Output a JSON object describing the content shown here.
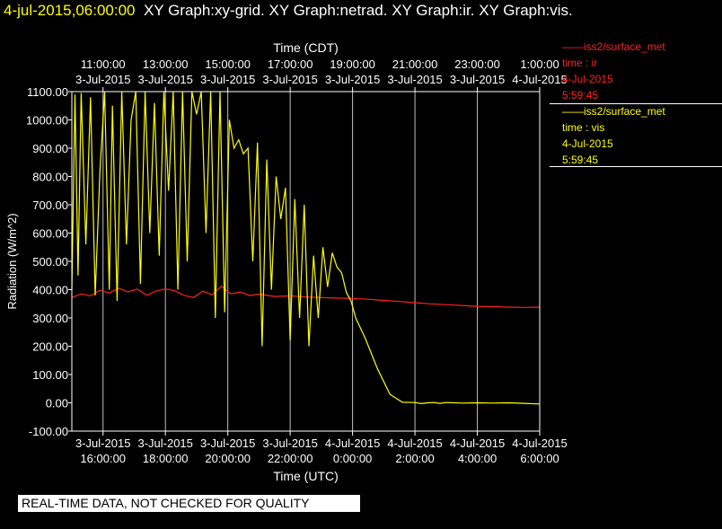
{
  "header": {
    "timestamp": "4-jul-2015,06:00:00",
    "graphs": "XY Graph:xy-grid.  XY Graph:netrad.  XY Graph:ir.  XY Graph:vis."
  },
  "legend": [
    {
      "line1": "——iss2/surface_met",
      "line2": "time : ir",
      "line3": "4-Jul-2015",
      "line4": "5:59:45",
      "color": "#ff2020"
    },
    {
      "line1": "——iss2/surface_met",
      "line2": "time : vis",
      "line3": "4-Jul-2015",
      "line4": "5:59:45",
      "color": "#ffff00"
    }
  ],
  "footer": "REAL-TIME DATA, NOT CHECKED FOR QUALITY",
  "chart_data": {
    "type": "line",
    "title": "",
    "xlabel_top": "Time (CDT)",
    "xlabel": "Time (UTC)",
    "ylabel": "Radiation  (W/m^2)",
    "ylim": [
      -100,
      1100
    ],
    "yticks": [
      "-100.00",
      "0.00",
      "100.00",
      "200.00",
      "300.00",
      "400.00",
      "500.00",
      "600.00",
      "700.00",
      "800.00",
      "900.00",
      "1000.00",
      "1100.00"
    ],
    "xlim_hours_utc": [
      15.0,
      30.0
    ],
    "x_ticks_bottom": [
      {
        "date": "3-Jul-2015",
        "time": "16:00:00"
      },
      {
        "date": "3-Jul-2015",
        "time": "18:00:00"
      },
      {
        "date": "3-Jul-2015",
        "time": "20:00:00"
      },
      {
        "date": "3-Jul-2015",
        "time": "22:00:00"
      },
      {
        "date": "4-Jul-2015",
        "time": "0:00:00"
      },
      {
        "date": "4-Jul-2015",
        "time": "2:00:00"
      },
      {
        "date": "4-Jul-2015",
        "time": "4:00:00"
      },
      {
        "date": "4-Jul-2015",
        "time": "6:00:00"
      }
    ],
    "x_ticks_top": [
      {
        "time": "11:00:00",
        "date": "3-Jul-2015"
      },
      {
        "time": "13:00:00",
        "date": "3-Jul-2015"
      },
      {
        "time": "15:00:00",
        "date": "3-Jul-2015"
      },
      {
        "time": "17:00:00",
        "date": "3-Jul-2015"
      },
      {
        "time": "19:00:00",
        "date": "3-Jul-2015"
      },
      {
        "time": "21:00:00",
        "date": "3-Jul-2015"
      },
      {
        "time": "23:00:00",
        "date": "3-Jul-2015"
      },
      {
        "time": "1:00:00",
        "date": "4-Jul-2015"
      }
    ],
    "grid": true,
    "series": [
      {
        "name": "ir",
        "color": "#ff2020",
        "x": [
          15.0,
          15.3,
          15.6,
          15.9,
          16.2,
          16.5,
          16.8,
          17.1,
          17.4,
          17.7,
          18.0,
          18.3,
          18.6,
          18.9,
          19.2,
          19.5,
          19.8,
          20.1,
          20.4,
          20.7,
          21.0,
          21.5,
          22.0,
          22.5,
          23.0,
          23.5,
          24.0,
          24.5,
          25.0,
          25.5,
          26.0,
          26.5,
          27.0,
          27.5,
          28.0,
          28.5,
          29.0,
          29.5,
          30.0
        ],
        "y": [
          372,
          385,
          378,
          398,
          388,
          405,
          392,
          402,
          380,
          395,
          403,
          396,
          380,
          372,
          395,
          382,
          412,
          385,
          392,
          379,
          384,
          376,
          378,
          374,
          372,
          370,
          369,
          366,
          362,
          358,
          354,
          350,
          347,
          344,
          341,
          340,
          338,
          337,
          338
        ]
      },
      {
        "name": "vis",
        "color": "#ffff00",
        "x": [
          15.0,
          15.1,
          15.2,
          15.3,
          15.45,
          15.6,
          15.75,
          15.9,
          16.05,
          16.2,
          16.3,
          16.45,
          16.6,
          16.75,
          16.9,
          17.05,
          17.2,
          17.35,
          17.5,
          17.65,
          17.8,
          17.95,
          18.1,
          18.25,
          18.4,
          18.55,
          18.7,
          18.85,
          19.0,
          19.15,
          19.3,
          19.45,
          19.6,
          19.75,
          19.9,
          20.05,
          20.2,
          20.35,
          20.5,
          20.65,
          20.8,
          20.95,
          21.1,
          21.25,
          21.4,
          21.55,
          21.7,
          21.85,
          22.0,
          22.15,
          22.3,
          22.45,
          22.6,
          22.75,
          22.9,
          23.05,
          23.2,
          23.35,
          23.5,
          23.65,
          23.8,
          23.95,
          24.1,
          24.4,
          24.8,
          25.2,
          25.6,
          26.0,
          26.2,
          26.4,
          26.6,
          26.8,
          27.0,
          27.5,
          28.0,
          28.5,
          29.0,
          29.5,
          30.0
        ],
        "y": [
          400,
          1090,
          450,
          1095,
          560,
          1080,
          380,
          820,
          1100,
          400,
          1050,
          360,
          1100,
          560,
          1000,
          1100,
          420,
          1100,
          600,
          1060,
          520,
          1100,
          750,
          1100,
          400,
          1100,
          500,
          1100,
          1020,
          1100,
          600,
          1100,
          300,
          1100,
          320,
          1000,
          900,
          930,
          880,
          900,
          500,
          920,
          200,
          860,
          400,
          800,
          650,
          760,
          220,
          720,
          300,
          700,
          200,
          520,
          300,
          550,
          410,
          530,
          480,
          460,
          390,
          360,
          300,
          230,
          120,
          30,
          2,
          1,
          -3,
          0,
          1,
          -2,
          1,
          -1,
          0,
          -1,
          0,
          -2,
          -4
        ]
      }
    ]
  }
}
